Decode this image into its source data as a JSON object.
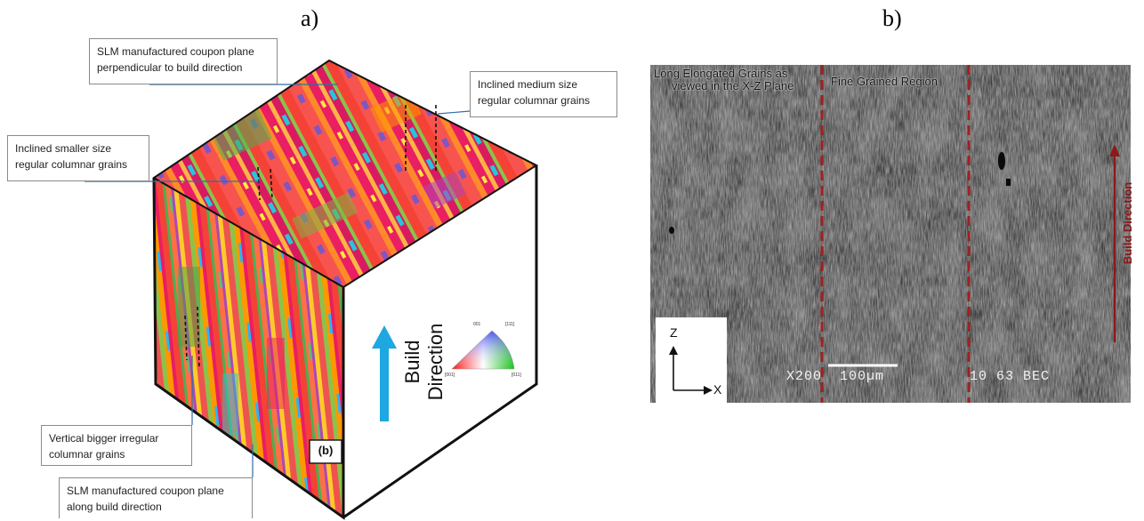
{
  "panels": {
    "a_label": "a)",
    "b_label": "b)"
  },
  "cube": {
    "front_label": "Build Direction",
    "inset_label": "(b)",
    "ipf_key": {
      "top_label": "001",
      "top_right_label": "[111]",
      "bottom_left_label": "[001]",
      "bottom_right_label": "[011]"
    }
  },
  "callouts": {
    "top_plane": [
      "SLM manufactured coupon plane",
      "perpendicular to build direction"
    ],
    "medium_grains": [
      "Inclined medium size",
      "regular columnar grains"
    ],
    "smaller_grains": [
      "Inclined smaller size",
      "regular columnar grains"
    ],
    "bigger_grains": [
      "Vertical bigger irregular",
      "columnar grains"
    ],
    "along_plane": [
      "SLM manufactured coupon plane",
      "along build direction"
    ]
  },
  "micrograph": {
    "left_region_label": [
      "Long Elongated Grains as",
      "viewed in the X-Z Plane"
    ],
    "fine_region_label": "Fine Grained Region",
    "scale_text": "X200  100µm",
    "info_text": "10 63 BEC",
    "axis_z": "Z",
    "axis_x": "X",
    "side_label": "Build Direction"
  },
  "colors": {
    "arrow_blue": "#1ea7e0",
    "dashed_red": "#a02020",
    "build_arrow_red": "#8b1a1a"
  }
}
